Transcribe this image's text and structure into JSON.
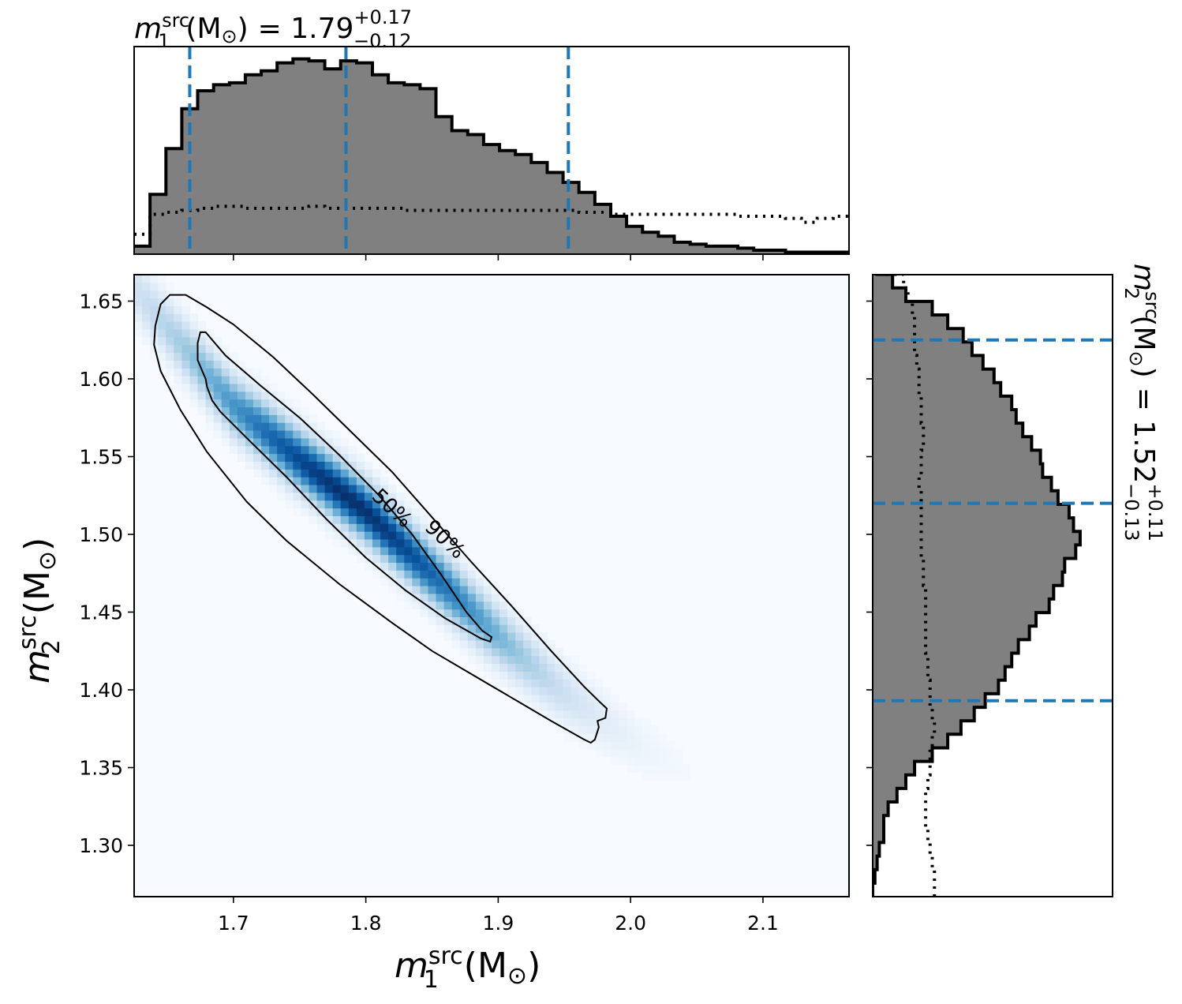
{
  "chart_data": [
    {
      "type": "heatmap",
      "panel": "joint",
      "xlabel": {
        "sym": "m",
        "sup": "src",
        "sub": "1",
        "unit": "(M",
        "odot": "⊙",
        "close": ")"
      },
      "ylabel": {
        "sym": "m",
        "sup": "src",
        "sub": "2",
        "unit": "(M",
        "odot": "⊙",
        "close": ")"
      },
      "xlim": [
        1.625,
        2.165
      ],
      "ylim": [
        1.267,
        1.667
      ],
      "x_ticks": [
        1.7,
        1.8,
        1.9,
        2.0,
        2.1
      ],
      "x_tick_labels": [
        "1.7",
        "1.8",
        "1.9",
        "2.0",
        "2.1"
      ],
      "y_ticks": [
        1.3,
        1.35,
        1.4,
        1.45,
        1.5,
        1.55,
        1.6,
        1.65
      ],
      "y_tick_labels": [
        "1.30",
        "1.35",
        "1.40",
        "1.45",
        "1.50",
        "1.55",
        "1.60",
        "1.65"
      ],
      "colormap": "Blues",
      "density_ridge": [
        [
          1.635,
          1.648
        ],
        [
          1.7,
          1.583
        ],
        [
          1.75,
          1.548
        ],
        [
          1.8,
          1.515
        ],
        [
          1.85,
          1.475
        ],
        [
          1.9,
          1.435
        ],
        [
          1.95,
          1.398
        ],
        [
          2.0,
          1.368
        ],
        [
          2.1,
          1.318
        ],
        [
          2.15,
          1.288
        ]
      ],
      "contour_labels": [
        "50%",
        "90%"
      ],
      "contours": [
        {
          "label": "50%",
          "points": [
            [
              1.673,
              1.623
            ],
            [
              1.675,
              1.63
            ],
            [
              1.679,
              1.63
            ],
            [
              1.694,
              1.615
            ],
            [
              1.72,
              1.596
            ],
            [
              1.75,
              1.575
            ],
            [
              1.78,
              1.551
            ],
            [
              1.81,
              1.525
            ],
            [
              1.835,
              1.5
            ],
            [
              1.857,
              1.474
            ],
            [
              1.876,
              1.45
            ],
            [
              1.888,
              1.438
            ],
            [
              1.895,
              1.434
            ],
            [
              1.894,
              1.431
            ],
            [
              1.887,
              1.433
            ],
            [
              1.86,
              1.446
            ],
            [
              1.83,
              1.464
            ],
            [
              1.8,
              1.485
            ],
            [
              1.77,
              1.51
            ],
            [
              1.74,
              1.537
            ],
            [
              1.71,
              1.562
            ],
            [
              1.69,
              1.579
            ],
            [
              1.684,
              1.586
            ],
            [
              1.68,
              1.595
            ],
            [
              1.679,
              1.6
            ],
            [
              1.673,
              1.612
            ],
            [
              1.673,
              1.623
            ]
          ]
        },
        {
          "label": "90%",
          "points": [
            [
              1.641,
              1.634
            ],
            [
              1.645,
              1.648
            ],
            [
              1.652,
              1.654
            ],
            [
              1.664,
              1.654
            ],
            [
              1.68,
              1.646
            ],
            [
              1.7,
              1.635
            ],
            [
              1.73,
              1.614
            ],
            [
              1.76,
              1.59
            ],
            [
              1.79,
              1.565
            ],
            [
              1.82,
              1.54
            ],
            [
              1.85,
              1.511
            ],
            [
              1.88,
              1.482
            ],
            [
              1.91,
              1.454
            ],
            [
              1.94,
              1.425
            ],
            [
              1.965,
              1.402
            ],
            [
              1.977,
              1.392
            ],
            [
              1.982,
              1.388
            ],
            [
              1.981,
              1.382
            ],
            [
              1.975,
              1.38
            ],
            [
              1.976,
              1.376
            ],
            [
              1.973,
              1.368
            ],
            [
              1.97,
              1.366
            ],
            [
              1.965,
              1.368
            ],
            [
              1.94,
              1.38
            ],
            [
              1.91,
              1.395
            ],
            [
              1.88,
              1.41
            ],
            [
              1.85,
              1.425
            ],
            [
              1.82,
              1.443
            ],
            [
              1.78,
              1.468
            ],
            [
              1.74,
              1.496
            ],
            [
              1.71,
              1.521
            ],
            [
              1.68,
              1.553
            ],
            [
              1.66,
              1.58
            ],
            [
              1.645,
              1.605
            ],
            [
              1.64,
              1.622
            ],
            [
              1.641,
              1.634
            ]
          ]
        }
      ]
    },
    {
      "type": "bar",
      "panel": "top-marginal",
      "style": "step-filled histogram",
      "title": {
        "sym": "m",
        "sup": "src",
        "sub": "1",
        "unit": "(M",
        "odot": "⊙",
        "close": ")",
        "eq": "= 1.79",
        "plus": "+0.17",
        "minus": "−0.12"
      },
      "xlim": [
        1.625,
        2.165
      ],
      "x_ticks": [
        1.7,
        1.8,
        1.9,
        2.0,
        2.1
      ],
      "bin_width": 0.012,
      "bin_start": 1.625,
      "posterior": [
        0.04,
        0.3,
        0.53,
        0.73,
        0.82,
        0.85,
        0.86,
        0.9,
        0.92,
        0.96,
        0.98,
        0.97,
        0.93,
        0.97,
        0.96,
        0.9,
        0.86,
        0.85,
        0.83,
        0.69,
        0.62,
        0.6,
        0.55,
        0.52,
        0.5,
        0.46,
        0.41,
        0.36,
        0.31,
        0.25,
        0.19,
        0.14,
        0.11,
        0.09,
        0.06,
        0.05,
        0.04,
        0.04,
        0.03,
        0.02,
        0.02,
        0.01,
        0.01,
        0.01,
        0.01,
        0.004
      ],
      "prior": [
        0.1,
        0.2,
        0.21,
        0.22,
        0.23,
        0.24,
        0.24,
        0.23,
        0.23,
        0.23,
        0.23,
        0.24,
        0.23,
        0.23,
        0.23,
        0.23,
        0.23,
        0.22,
        0.22,
        0.22,
        0.22,
        0.22,
        0.22,
        0.22,
        0.22,
        0.22,
        0.22,
        0.22,
        0.21,
        0.21,
        0.2,
        0.2,
        0.2,
        0.2,
        0.2,
        0.2,
        0.2,
        0.2,
        0.19,
        0.19,
        0.19,
        0.18,
        0.16,
        0.18,
        0.19,
        0.19
      ],
      "quantiles": [
        1.667,
        1.785,
        1.953
      ],
      "quantile_color": "#1f77b4",
      "fill_color": "#808080"
    },
    {
      "type": "bar",
      "panel": "right-marginal",
      "orientation": "horizontal",
      "style": "step-filled histogram",
      "title": {
        "sym": "m",
        "sup": "src",
        "sub": "2",
        "unit": "(M",
        "odot": "⊙",
        "close": ")",
        "eq": "= 1.52",
        "plus": "+0.11",
        "minus": "−0.13"
      },
      "ylim": [
        1.267,
        1.667
      ],
      "y_ticks": [
        1.3,
        1.35,
        1.4,
        1.45,
        1.5,
        1.55,
        1.6,
        1.65
      ],
      "bin_width": 0.0087,
      "bin_start": 1.267,
      "posterior": [
        0.0,
        0.01,
        0.02,
        0.03,
        0.05,
        0.05,
        0.07,
        0.11,
        0.15,
        0.19,
        0.27,
        0.34,
        0.4,
        0.46,
        0.51,
        0.57,
        0.6,
        0.63,
        0.66,
        0.71,
        0.74,
        0.8,
        0.82,
        0.86,
        0.87,
        0.92,
        0.94,
        0.91,
        0.89,
        0.84,
        0.81,
        0.77,
        0.76,
        0.72,
        0.68,
        0.65,
        0.63,
        0.58,
        0.55,
        0.5,
        0.45,
        0.41,
        0.34,
        0.27,
        0.15,
        0.09,
        0.02
      ],
      "prior": [
        0.28,
        0.28,
        0.27,
        0.26,
        0.25,
        0.24,
        0.24,
        0.24,
        0.25,
        0.26,
        0.26,
        0.27,
        0.28,
        0.27,
        0.26,
        0.26,
        0.25,
        0.25,
        0.24,
        0.24,
        0.24,
        0.24,
        0.24,
        0.23,
        0.23,
        0.22,
        0.22,
        0.22,
        0.22,
        0.22,
        0.21,
        0.22,
        0.22,
        0.23,
        0.23,
        0.22,
        0.22,
        0.21,
        0.21,
        0.2,
        0.19,
        0.19,
        0.19,
        0.18,
        0.16,
        0.14,
        0.05
      ],
      "quantiles": [
        1.393,
        1.52,
        1.625
      ],
      "quantile_color": "#1f77b4",
      "fill_color": "#808080"
    }
  ]
}
